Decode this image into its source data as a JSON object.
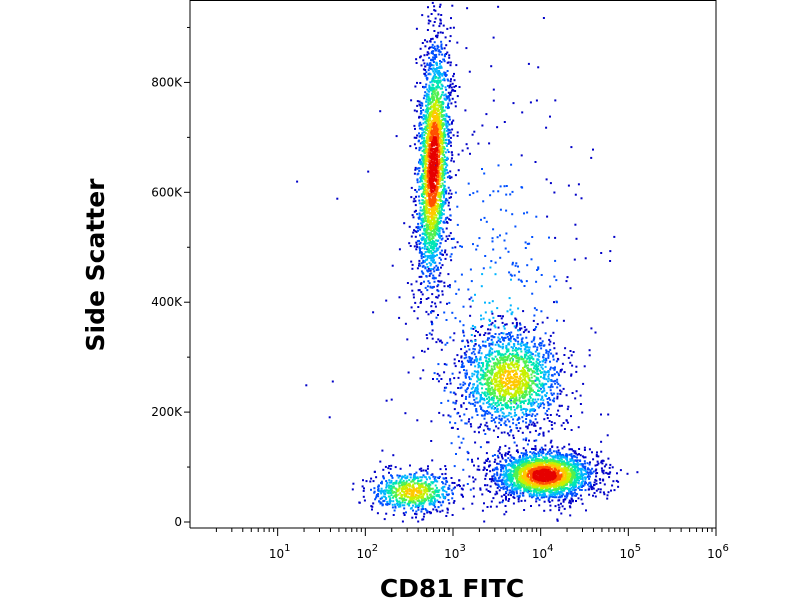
{
  "chart_data": {
    "type": "scatter",
    "style": "density pseudocolor dot plot",
    "title": "",
    "xlabel": "CD81 FITC",
    "ylabel": "Side Scatter",
    "xscale": "log",
    "xlim": [
      1,
      1000000
    ],
    "ylim": [
      0,
      950000
    ],
    "x_ticks": [
      {
        "value": 10,
        "base": "10",
        "exp": "1"
      },
      {
        "value": 100,
        "base": "10",
        "exp": "2"
      },
      {
        "value": 1000,
        "base": "10",
        "exp": "3"
      },
      {
        "value": 10000,
        "base": "10",
        "exp": "4"
      },
      {
        "value": 100000,
        "base": "10",
        "exp": "5"
      },
      {
        "value": 1000000,
        "base": "10",
        "exp": "6"
      }
    ],
    "y_ticks": [
      {
        "value": 0,
        "label": "0"
      },
      {
        "value": 200000,
        "label": "200K"
      },
      {
        "value": 400000,
        "label": "400K"
      },
      {
        "value": 600000,
        "label": "600K"
      },
      {
        "value": 800000,
        "label": "800K"
      }
    ],
    "populations": [
      {
        "x_center": 600,
        "y_center": 650000,
        "x_spread_log10": 0.09,
        "y_spread": 110000,
        "events": 2600,
        "peak_density": "high",
        "shape": "tilted"
      },
      {
        "x_center": 4500,
        "y_center": 260000,
        "x_spread_log10": 0.3,
        "y_spread": 45000,
        "events": 1600,
        "peak_density": "medium"
      },
      {
        "x_center": 11000,
        "y_center": 85000,
        "x_spread_log10": 0.28,
        "y_spread": 22000,
        "events": 2400,
        "peak_density": "high"
      },
      {
        "x_center": 350,
        "y_center": 55000,
        "x_spread_log10": 0.25,
        "y_spread": 20000,
        "events": 700,
        "peak_density": "medium"
      },
      {
        "x_center": 3000,
        "y_center": 350000,
        "x_spread_log10": 0.6,
        "y_spread": 250000,
        "events": 500,
        "peak_density": "low",
        "note": "sparse scattered events"
      }
    ],
    "colormap": [
      "#0000c8",
      "#0050ff",
      "#00b4ff",
      "#00e6b4",
      "#50f050",
      "#c8f000",
      "#ffc800",
      "#ff5000",
      "#e60000"
    ],
    "grid": false,
    "legend": "none"
  }
}
